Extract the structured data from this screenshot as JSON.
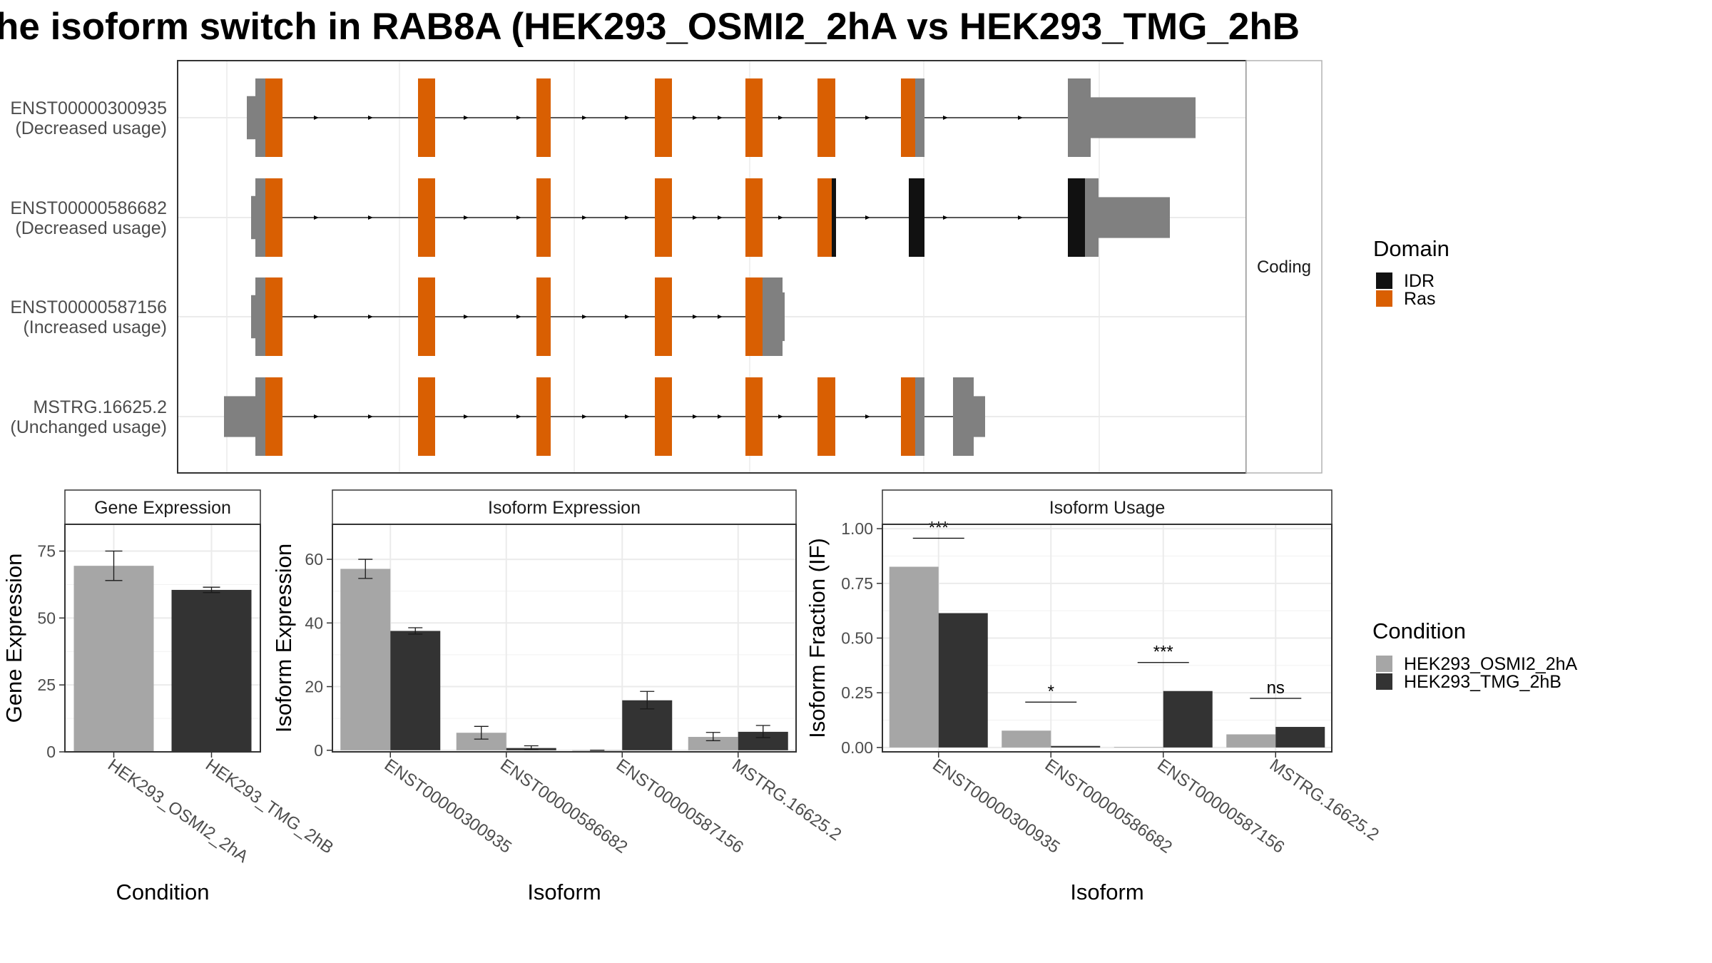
{
  "title": "he isoform switch in RAB8A (HEK293_OSMI2_2hA vs HEK293_TMG_2hB",
  "colors": {
    "ras": "#D95F02",
    "idr": "#111111",
    "utr": "#808080",
    "cond_a": "#A6A6A6",
    "cond_b": "#333333",
    "grid": "#EBEBEB",
    "panel_border": "#333333",
    "strip_border": "#B3B3B3"
  },
  "structure": {
    "facet_label": "Coding",
    "isoforms": [
      {
        "label": "ENST00000300935\n(Decreased usage)"
      },
      {
        "label": "ENST00000586682\n(Decreased usage)"
      },
      {
        "label": "ENST00000587156\n(Increased usage)"
      },
      {
        "label": "MSTRG.16625.2\n(Unchanged usage)"
      }
    ]
  },
  "legend_domain": {
    "title": "Domain",
    "items": [
      {
        "label": "IDR",
        "color": "#111111"
      },
      {
        "label": "Ras",
        "color": "#D95F02"
      }
    ]
  },
  "legend_condition": {
    "title": "Condition",
    "items": [
      {
        "label": "HEK293_OSMI2_2hA",
        "color": "#A6A6A6"
      },
      {
        "label": "HEK293_TMG_2hB",
        "color": "#333333"
      }
    ]
  },
  "chart_data": [
    {
      "type": "bar",
      "title": "Gene Expression",
      "xlabel": "Condition",
      "ylabel": "Gene Expression",
      "ylim": [
        0,
        85
      ],
      "yticks": [
        0,
        25,
        50,
        75
      ],
      "categories": [
        "HEK293_OSMI2_2hA",
        "HEK293_TMG_2hB"
      ],
      "values": [
        69.5,
        60.5
      ],
      "errors": [
        [
          64,
          75
        ],
        [
          59.5,
          61.5
        ]
      ],
      "colors": [
        "#A6A6A6",
        "#333333"
      ]
    },
    {
      "type": "bar",
      "title": "Isoform Expression",
      "xlabel": "Isoform",
      "ylabel": "Isoform Expression",
      "ylim": [
        -0.5,
        71
      ],
      "yticks": [
        0,
        20,
        40,
        60
      ],
      "categories": [
        "ENST00000300935",
        "ENST00000586682",
        "ENST00000587156",
        "MSTRG.16625.2"
      ],
      "series": [
        {
          "values": [
            57,
            5.5,
            0,
            4.2
          ],
          "errors": [
            [
              54,
              60
            ],
            [
              3.5,
              7.5
            ],
            [
              0,
              0
            ],
            [
              3,
              5.6
            ]
          ]
        },
        {
          "values": [
            37.5,
            0.7,
            15.7,
            5.8
          ],
          "errors": [
            [
              36.5,
              38.5
            ],
            [
              0.2,
              1.4
            ],
            [
              13,
              18.5
            ],
            [
              4,
              7.8
            ]
          ]
        }
      ]
    },
    {
      "type": "bar",
      "title": "Isoform Usage",
      "xlabel": "Isoform",
      "ylabel": "Isoform Fraction (IF)",
      "ylim": [
        -0.02,
        1.02
      ],
      "yticks": [
        "0.00",
        "0.25",
        "0.50",
        "0.75",
        "1.00"
      ],
      "categories": [
        "ENST00000300935",
        "ENST00000586682",
        "ENST00000587156",
        "MSTRG.16625.2"
      ],
      "series": [
        {
          "values": [
            0.826,
            0.077,
            0.002,
            0.06
          ]
        },
        {
          "values": [
            0.614,
            0.007,
            0.258,
            0.094
          ]
        }
      ],
      "significance": [
        "***",
        "*",
        "***",
        "ns"
      ]
    }
  ]
}
